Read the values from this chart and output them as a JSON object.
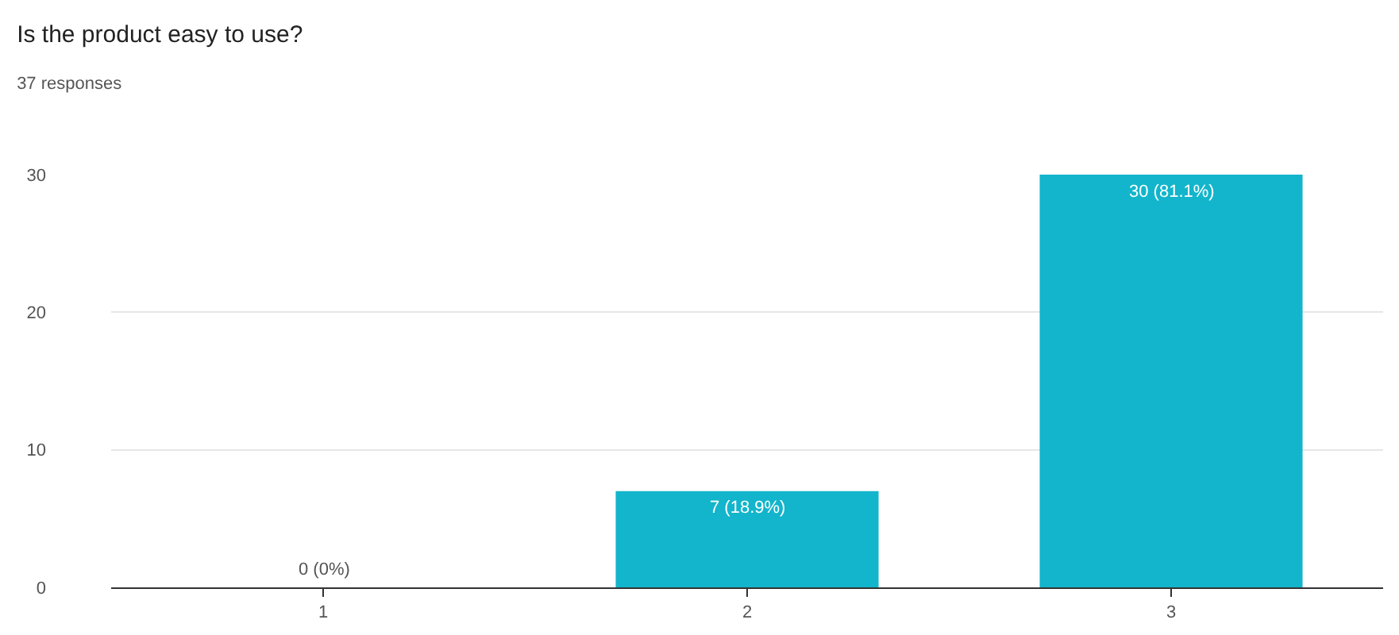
{
  "chart_data": {
    "type": "bar",
    "title": "Is the product easy to use?",
    "subtitle": "37 responses",
    "categories": [
      "1",
      "2",
      "3"
    ],
    "values": [
      0,
      7,
      30
    ],
    "color": "#12b5cb",
    "value_labels": [
      "0 (0%)",
      "7 (18.9%)",
      "30 (81.1%)"
    ],
    "ylim": [
      0,
      30
    ],
    "yticks": [
      0,
      10,
      20,
      30
    ],
    "grid": "y"
  }
}
